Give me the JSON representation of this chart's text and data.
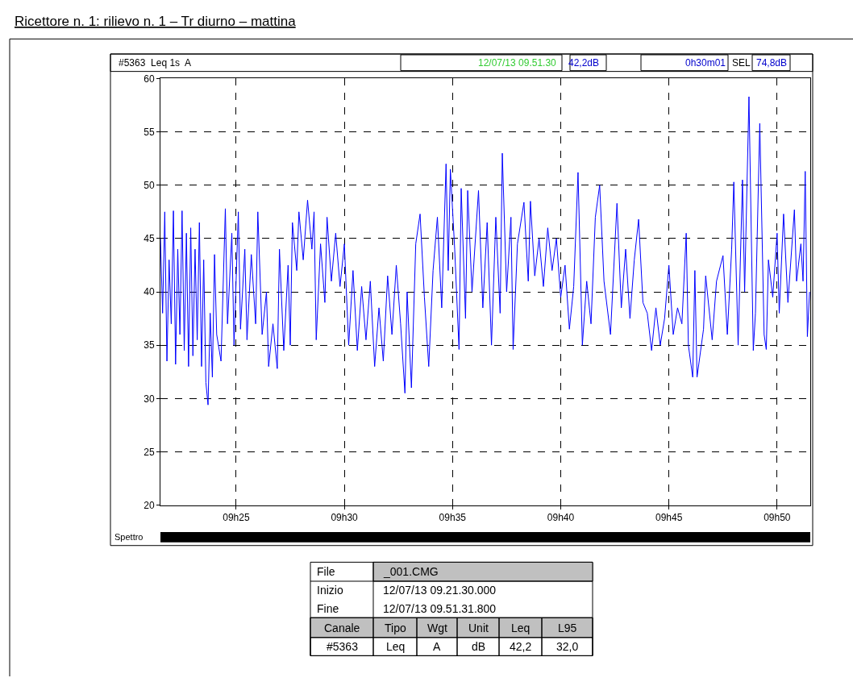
{
  "chart_data": {
    "type": "line",
    "title": "Ricettore n. 1: rilievo n. 1 – Tr diurno – mattina",
    "x": [
      "--07-12T09:21:30",
      "--07-12T09:21:36",
      "--07-12T09:21:42",
      "--07-12T09:21:48",
      "--07-12T09:21:54",
      "--07-12T09:22:00",
      "--07-12T09:22:06",
      "--07-12T09:22:12",
      "--07-12T09:22:18",
      "--07-12T09:22:24",
      "--07-12T09:22:30",
      "--07-12T09:22:36",
      "--07-12T09:22:42",
      "--07-12T09:22:48",
      "--07-12T09:22:54",
      "--07-12T09:23:00",
      "--07-12T09:23:06",
      "--07-12T09:23:12",
      "--07-12T09:23:18",
      "--07-12T09:23:24",
      "--07-12T09:23:30",
      "--07-12T09:23:36",
      "--07-12T09:23:42",
      "--07-12T09:23:48",
      "--07-12T09:23:54",
      "--07-12T09:24:00",
      "--07-12T09:24:06",
      "--07-12T09:24:18",
      "--07-12T09:24:30",
      "--07-12T09:24:36",
      "--07-12T09:24:48",
      "--07-12T09:24:54",
      "--07-12T09:25:06",
      "--07-12T09:25:12",
      "--07-12T09:25:24",
      "--07-12T09:25:30",
      "--07-12T09:25:42",
      "--07-12T09:25:54",
      "--07-12T09:26:00",
      "--07-12T09:26:12",
      "--07-12T09:26:24",
      "--07-12T09:26:30",
      "--07-12T09:26:42",
      "--07-12T09:26:54",
      "--07-12T09:27:00",
      "--07-12T09:27:12",
      "--07-12T09:27:24",
      "--07-12T09:27:30",
      "--07-12T09:27:36",
      "--07-12T09:27:48",
      "--07-12T09:27:54",
      "--07-12T09:28:06",
      "--07-12T09:28:18",
      "--07-12T09:28:30",
      "--07-12T09:28:36",
      "--07-12T09:28:42",
      "--07-12T09:28:54",
      "--07-12T09:29:06",
      "--07-12T09:29:12",
      "--07-12T09:29:24",
      "--07-12T09:29:36",
      "--07-12T09:29:48",
      "--07-12T09:30:00",
      "--07-12T09:30:12",
      "--07-12T09:30:24",
      "--07-12T09:30:36",
      "--07-12T09:30:48",
      "--07-12T09:31:00",
      "--07-12T09:31:12",
      "--07-12T09:31:24",
      "--07-12T09:31:36",
      "--07-12T09:31:48",
      "--07-12T09:32:00",
      "--07-12T09:32:12",
      "--07-12T09:32:24",
      "--07-12T09:32:36",
      "--07-12T09:32:48",
      "--07-12T09:32:54",
      "--07-12T09:33:06",
      "--07-12T09:33:18",
      "--07-12T09:33:30",
      "--07-12T09:33:42",
      "--07-12T09:33:54",
      "--07-12T09:34:06",
      "--07-12T09:34:18",
      "--07-12T09:34:30",
      "--07-12T09:34:42",
      "--07-12T09:34:48",
      "--07-12T09:34:54",
      "--07-12T09:35:06",
      "--07-12T09:35:18",
      "--07-12T09:35:24",
      "--07-12T09:35:36",
      "--07-12T09:35:42",
      "--07-12T09:35:54",
      "--07-12T09:36:12",
      "--07-12T09:36:24",
      "--07-12T09:36:36",
      "--07-12T09:36:48",
      "--07-12T09:37:00",
      "--07-12T09:37:12",
      "--07-12T09:37:18",
      "--07-12T09:37:30",
      "--07-12T09:37:42",
      "--07-12T09:37:48",
      "--07-12T09:38:00",
      "--07-12T09:38:18",
      "--07-12T09:38:30",
      "--07-12T09:38:36",
      "--07-12T09:38:48",
      "--07-12T09:39:00",
      "--07-12T09:39:12",
      "--07-12T09:39:24",
      "--07-12T09:39:36",
      "--07-12T09:39:48",
      "--07-12T09:40:00",
      "--07-12T09:40:12",
      "--07-12T09:40:24",
      "--07-12T09:40:36",
      "--07-12T09:40:48",
      "--07-12T09:41:00",
      "--07-12T09:41:12",
      "--07-12T09:41:24",
      "--07-12T09:41:36",
      "--07-12T09:41:48",
      "--07-12T09:42:00",
      "--07-12T09:42:18",
      "--07-12T09:42:36",
      "--07-12T09:42:48",
      "--07-12T09:43:00",
      "--07-12T09:43:12",
      "--07-12T09:43:24",
      "--07-12T09:43:36",
      "--07-12T09:43:48",
      "--07-12T09:44:00",
      "--07-12T09:44:12",
      "--07-12T09:44:24",
      "--07-12T09:44:36",
      "--07-12T09:44:48",
      "--07-12T09:45:00",
      "--07-12T09:45:12",
      "--07-12T09:45:24",
      "--07-12T09:45:36",
      "--07-12T09:45:48",
      "--07-12T09:45:54",
      "--07-12T09:46:06",
      "--07-12T09:46:12",
      "--07-12T09:46:18",
      "--07-12T09:46:36",
      "--07-12T09:46:42",
      "--07-12T09:47:00",
      "--07-12T09:47:12",
      "--07-12T09:47:30",
      "--07-12T09:47:42",
      "--07-12T09:47:54",
      "--07-12T09:48:00",
      "--07-12T09:48:12",
      "--07-12T09:48:24",
      "--07-12T09:48:30",
      "--07-12T09:48:42",
      "--07-12T09:48:54",
      "--07-12T09:49:00",
      "--07-12T09:49:12",
      "--07-12T09:49:24",
      "--07-12T09:49:30",
      "--07-12T09:49:36",
      "--07-12T09:49:48",
      "--07-12T09:50:00",
      "--07-12T09:50:06",
      "--07-12T09:50:18",
      "--07-12T09:50:30",
      "--07-12T09:50:48",
      "--07-12T09:50:54",
      "--07-12T09:51:06",
      "--07-12T09:51:12",
      "--07-12T09:51:18",
      "--07-12T09:51:24",
      "--07-12T09:51:30"
    ],
    "series": [
      {
        "color": "#0000ff",
        "values": [
          45.0,
          38.0,
          47.5,
          33.5,
          43.0,
          37.0,
          47.6,
          33.2,
          44.0,
          36.0,
          47.6,
          34.5,
          45.5,
          33.0,
          46.0,
          34.0,
          44.0,
          35.5,
          46.5,
          33.0,
          43.0,
          31.5,
          29.4,
          38.0,
          32.0,
          43.5,
          36.0,
          33.5,
          47.8,
          37.0,
          45.5,
          35.0,
          47.5,
          36.5,
          44.0,
          35.5,
          43.5,
          37.0,
          47.5,
          36.0,
          40.0,
          33.0,
          37.0,
          32.8,
          44.0,
          34.5,
          42.5,
          35.0,
          46.5,
          42.0,
          47.5,
          43.0,
          48.6,
          44.0,
          47.5,
          35.5,
          44.5,
          39.0,
          47.0,
          41.0,
          45.5,
          40.5,
          44.5,
          35.0,
          42.0,
          34.5,
          40.5,
          35.5,
          41.0,
          33.0,
          38.5,
          33.5,
          41.5,
          36.0,
          42.5,
          37.0,
          30.5,
          40.0,
          31.0,
          44.5,
          47.3,
          39.5,
          33.0,
          42.0,
          47.0,
          38.5,
          52.0,
          42.0,
          51.5,
          44.0,
          34.6,
          49.7,
          37.5,
          49.5,
          40.0,
          49.5,
          38.5,
          46.5,
          35.0,
          47.0,
          38.0,
          53.0,
          40.0,
          47.0,
          34.6,
          44.5,
          48.4,
          41.0,
          48.5,
          41.5,
          45.0,
          40.5,
          46.0,
          42.0,
          45.0,
          39.5,
          42.5,
          36.5,
          40.5,
          51.2,
          35.0,
          41.0,
          37.0,
          47.0,
          50.0,
          41.0,
          36.0,
          48.3,
          38.5,
          44.0,
          37.5,
          43.0,
          46.8,
          39.0,
          38.0,
          34.5,
          38.5,
          35.0,
          37.5,
          42.5,
          36.0,
          38.5,
          37.0,
          45.5,
          35.0,
          32.0,
          42.0,
          32.0,
          36.5,
          41.5,
          35.5,
          41.0,
          43.4,
          36.0,
          44.0,
          50.3,
          35.0,
          50.5,
          40.0,
          58.3,
          34.5,
          38.0,
          55.8,
          36.0,
          34.6,
          43.0,
          39.5,
          45.5,
          38.0,
          47.3,
          39.0,
          47.7,
          41.0,
          44.5,
          41.0,
          51.3,
          35.8,
          40.0
        ]
      }
    ],
    "xlim": [
      "--07-12T09:21:30",
      "--07-12T09:51:32"
    ],
    "xticks": [
      {
        "value": "--07-12T09:25",
        "label": "09h25"
      },
      {
        "value": "--07-12T09:30",
        "label": "09h30"
      },
      {
        "value": "--07-12T09:35",
        "label": "09h35"
      },
      {
        "value": "--07-12T09:40",
        "label": "09h40"
      },
      {
        "value": "--07-12T09:45",
        "label": "09h45"
      },
      {
        "value": "--07-12T09:50",
        "label": "09h50"
      }
    ],
    "ylim": [
      20,
      60
    ],
    "yticks": [
      20,
      25,
      30,
      35,
      40,
      45,
      50,
      55,
      60
    ],
    "grid": true,
    "marker": "none",
    "line_style": "solid",
    "annotations": [
      "#5363  Leq 1s  A",
      "12/07/13 09.51.30",
      "42,2dB",
      "0h30m01",
      "SEL",
      "74,8dB",
      "Spettro",
      "File",
      "_001.CMG",
      "Inizio",
      "12/07/13 09.21.30.000",
      "Fine",
      "12/07/13 09.51.31.800",
      "Canale",
      "Tipo",
      "Wgt",
      "Unit",
      "Leq",
      "L95",
      "#5363",
      "Leq",
      "A",
      "dB",
      "42,2",
      "32,0"
    ]
  }
}
